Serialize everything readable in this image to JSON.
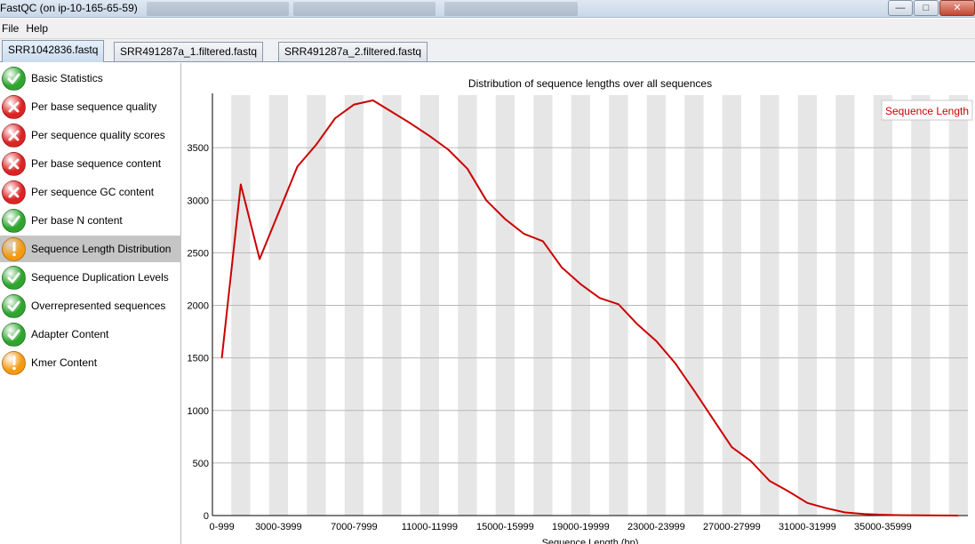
{
  "window": {
    "title": "FastQC (on ip-10-165-65-59)"
  },
  "menu": [
    "File",
    "Help"
  ],
  "tabs": [
    {
      "label": "SRR1042836.fastq",
      "active": true
    },
    {
      "label": "SRR491287a_1.filtered.fastq",
      "active": false
    },
    {
      "label": "SRR491287a_2.filtered.fastq",
      "active": false
    }
  ],
  "modules": [
    {
      "label": "Basic Statistics",
      "status": "pass"
    },
    {
      "label": "Per base sequence quality",
      "status": "fail"
    },
    {
      "label": "Per sequence quality scores",
      "status": "fail"
    },
    {
      "label": "Per base sequence content",
      "status": "fail"
    },
    {
      "label": "Per sequence GC content",
      "status": "fail"
    },
    {
      "label": "Per base N content",
      "status": "pass"
    },
    {
      "label": "Sequence Length Distribution",
      "status": "warn",
      "selected": true
    },
    {
      "label": "Sequence Duplication Levels",
      "status": "pass"
    },
    {
      "label": "Overrepresented sequences",
      "status": "pass"
    },
    {
      "label": "Adapter Content",
      "status": "pass"
    },
    {
      "label": "Kmer Content",
      "status": "warn"
    }
  ],
  "status_colors": {
    "pass": "#2fa52f",
    "fail": "#dc2424",
    "warn": "#f39a12"
  },
  "chart_data": {
    "type": "line",
    "title": "Distribution of sequence lengths over all sequences",
    "xlabel": "Sequence Length (bp)",
    "ylabel": "",
    "ylim": [
      0,
      4000
    ],
    "yticks": [
      0,
      500,
      1000,
      1500,
      2000,
      2500,
      3000,
      3500
    ],
    "x_tick_labels": [
      "0-999",
      "3000-3999",
      "7000-7999",
      "11000-11999",
      "15000-15999",
      "19000-19999",
      "23000-23999",
      "27000-27999",
      "31000-31999",
      "35000-35999"
    ],
    "grid": true,
    "alternating_bands": true,
    "legend_position": "top-right",
    "series": [
      {
        "name": "Sequence Length",
        "color": "#cc0000",
        "categories": [
          "0-999",
          "1000-1999",
          "2000-2999",
          "3000-3999",
          "4000-4999",
          "5000-5999",
          "6000-6999",
          "7000-7999",
          "8000-8999",
          "9000-9999",
          "10000-10999",
          "11000-11999",
          "12000-12999",
          "13000-13999",
          "14000-14999",
          "15000-15999",
          "16000-16999",
          "17000-17999",
          "18000-18999",
          "19000-19999",
          "20000-20999",
          "21000-21999",
          "22000-22999",
          "23000-23999",
          "24000-24999",
          "25000-25999",
          "26000-26999",
          "27000-27999",
          "28000-28999",
          "29000-29999",
          "30000-30999",
          "31000-31999",
          "32000-32999",
          "33000-33999",
          "34000-34999",
          "35000-35999",
          "36000-36999",
          "37000-37999",
          "38000-38999",
          "39000-39999"
        ],
        "values": [
          1500,
          3150,
          2440,
          2880,
          3320,
          3530,
          3780,
          3910,
          3950,
          3840,
          3730,
          3610,
          3480,
          3300,
          3000,
          2820,
          2680,
          2610,
          2360,
          2200,
          2070,
          2010,
          1820,
          1660,
          1450,
          1190,
          920,
          650,
          520,
          330,
          230,
          120,
          70,
          30,
          15,
          8,
          3,
          2,
          1,
          0
        ]
      }
    ]
  }
}
